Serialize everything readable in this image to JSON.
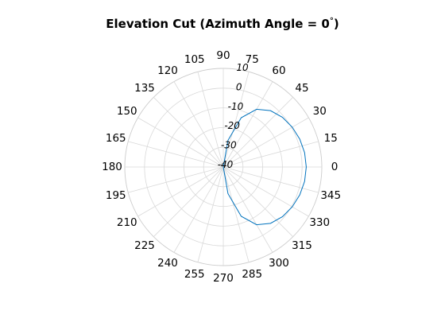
{
  "chart_data": {
    "type": "polar-line",
    "title": "Elevation Cut (Azimuth Angle = 0",
    "title_degree": "°",
    "title_suffix": ")",
    "angle_ticks": [
      "0",
      "15",
      "30",
      "45",
      "60",
      "75",
      "90",
      "105",
      "120",
      "135",
      "150",
      "165",
      "180",
      "195",
      "210",
      "225",
      "240",
      "255",
      "270",
      "285",
      "300",
      "315",
      "330",
      "345"
    ],
    "angle_tick_values": [
      0,
      15,
      30,
      45,
      60,
      75,
      90,
      105,
      120,
      135,
      150,
      165,
      180,
      195,
      210,
      225,
      240,
      255,
      270,
      285,
      300,
      315,
      330,
      345
    ],
    "rlim": [
      -40,
      10
    ],
    "radial_ticks": [
      "-40",
      "-30",
      "-20",
      "-10",
      "0",
      "10"
    ],
    "radial_tick_values": [
      -40,
      -30,
      -20,
      -10,
      0,
      10
    ],
    "radial_tick_angle_deg": 80,
    "grid": true,
    "series": [
      {
        "color": "#0072bd",
        "theta_deg": [
          -90,
          -80,
          -70,
          -60,
          -50,
          -40,
          -30,
          -20,
          -10,
          0,
          10,
          20,
          30,
          40,
          50,
          60,
          70,
          80,
          90
        ],
        "r_db": [
          -40,
          -26.3,
          -13.4,
          -6.2,
          -2.7,
          -0.8,
          0.4,
          1.3,
          1.9,
          2.1,
          1.9,
          1.3,
          0.4,
          -0.8,
          -2.7,
          -6.2,
          -13.4,
          -26.3,
          -40
        ]
      }
    ]
  }
}
